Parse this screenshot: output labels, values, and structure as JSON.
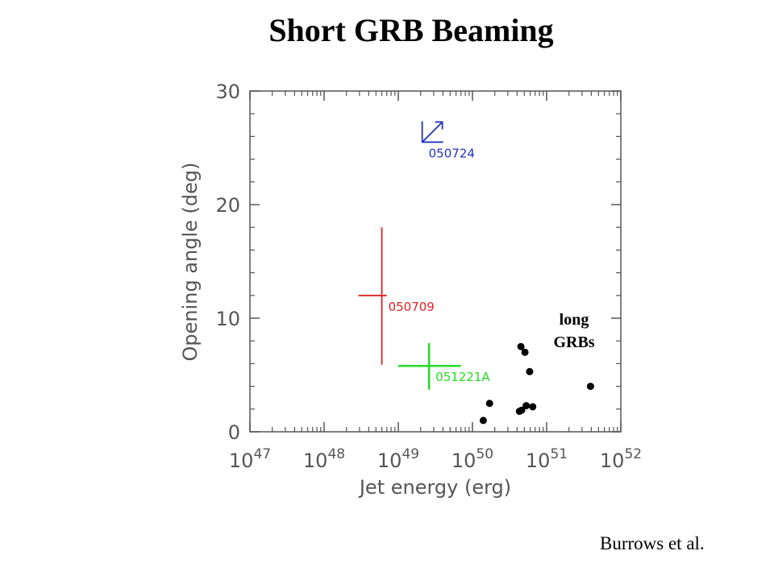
{
  "slide": {
    "title": "Short GRB Beaming",
    "credit": "Burrows et al."
  },
  "chart_data": {
    "type": "scatter",
    "xlabel": "Jet energy (erg)",
    "ylabel": "Opening angle (deg)",
    "x_scale": "log",
    "xlim": [
      1e+47,
      1e+52
    ],
    "ylim": [
      0,
      30
    ],
    "x_ticks": [
      {
        "value": 1e+47,
        "base": "10",
        "exp": "47"
      },
      {
        "value": 1e+48,
        "base": "10",
        "exp": "48"
      },
      {
        "value": 1e+49,
        "base": "10",
        "exp": "49"
      },
      {
        "value": 1e+50,
        "base": "10",
        "exp": "50"
      },
      {
        "value": 1e+51,
        "base": "10",
        "exp": "51"
      },
      {
        "value": 1e+52,
        "base": "10",
        "exp": "52"
      }
    ],
    "y_ticks": [
      {
        "value": 0,
        "label": "0"
      },
      {
        "value": 10,
        "label": "10"
      },
      {
        "value": 20,
        "label": "20"
      },
      {
        "value": 30,
        "label": "30"
      }
    ],
    "grid": false,
    "short_grbs": [
      {
        "name": "050724",
        "kind": "lower-limit",
        "x": 2.1e+49,
        "y": 25.5,
        "color": "#2233bb"
      },
      {
        "name": "050709",
        "kind": "error-bars",
        "x": 6e+48,
        "y": 12.0,
        "x_err": [
          2.9e+48,
          7e+48
        ],
        "y_err": [
          5.9,
          18.0
        ],
        "color": "#dd2222"
      },
      {
        "name": "051221A",
        "kind": "error-bars",
        "x": 2.6e+49,
        "y": 5.8,
        "x_err": [
          1e+49,
          7e+49
        ],
        "y_err": [
          3.7,
          7.8
        ],
        "color": "#22dd22"
      }
    ],
    "long_grbs": {
      "label_line1": "long",
      "label_line2": "GRBs",
      "color": "#000000",
      "points": [
        {
          "x": 1.4e+50,
          "y": 1.0
        },
        {
          "x": 1.7e+50,
          "y": 2.5
        },
        {
          "x": 4.3e+50,
          "y": 1.8
        },
        {
          "x": 4.6e+50,
          "y": 1.9
        },
        {
          "x": 5.3e+50,
          "y": 2.3
        },
        {
          "x": 6.5e+50,
          "y": 2.2
        },
        {
          "x": 4.5e+50,
          "y": 7.5
        },
        {
          "x": 5.1e+50,
          "y": 7.0
        },
        {
          "x": 5.9e+50,
          "y": 5.3
        },
        {
          "x": 3.9e+51,
          "y": 4.0
        }
      ]
    }
  }
}
